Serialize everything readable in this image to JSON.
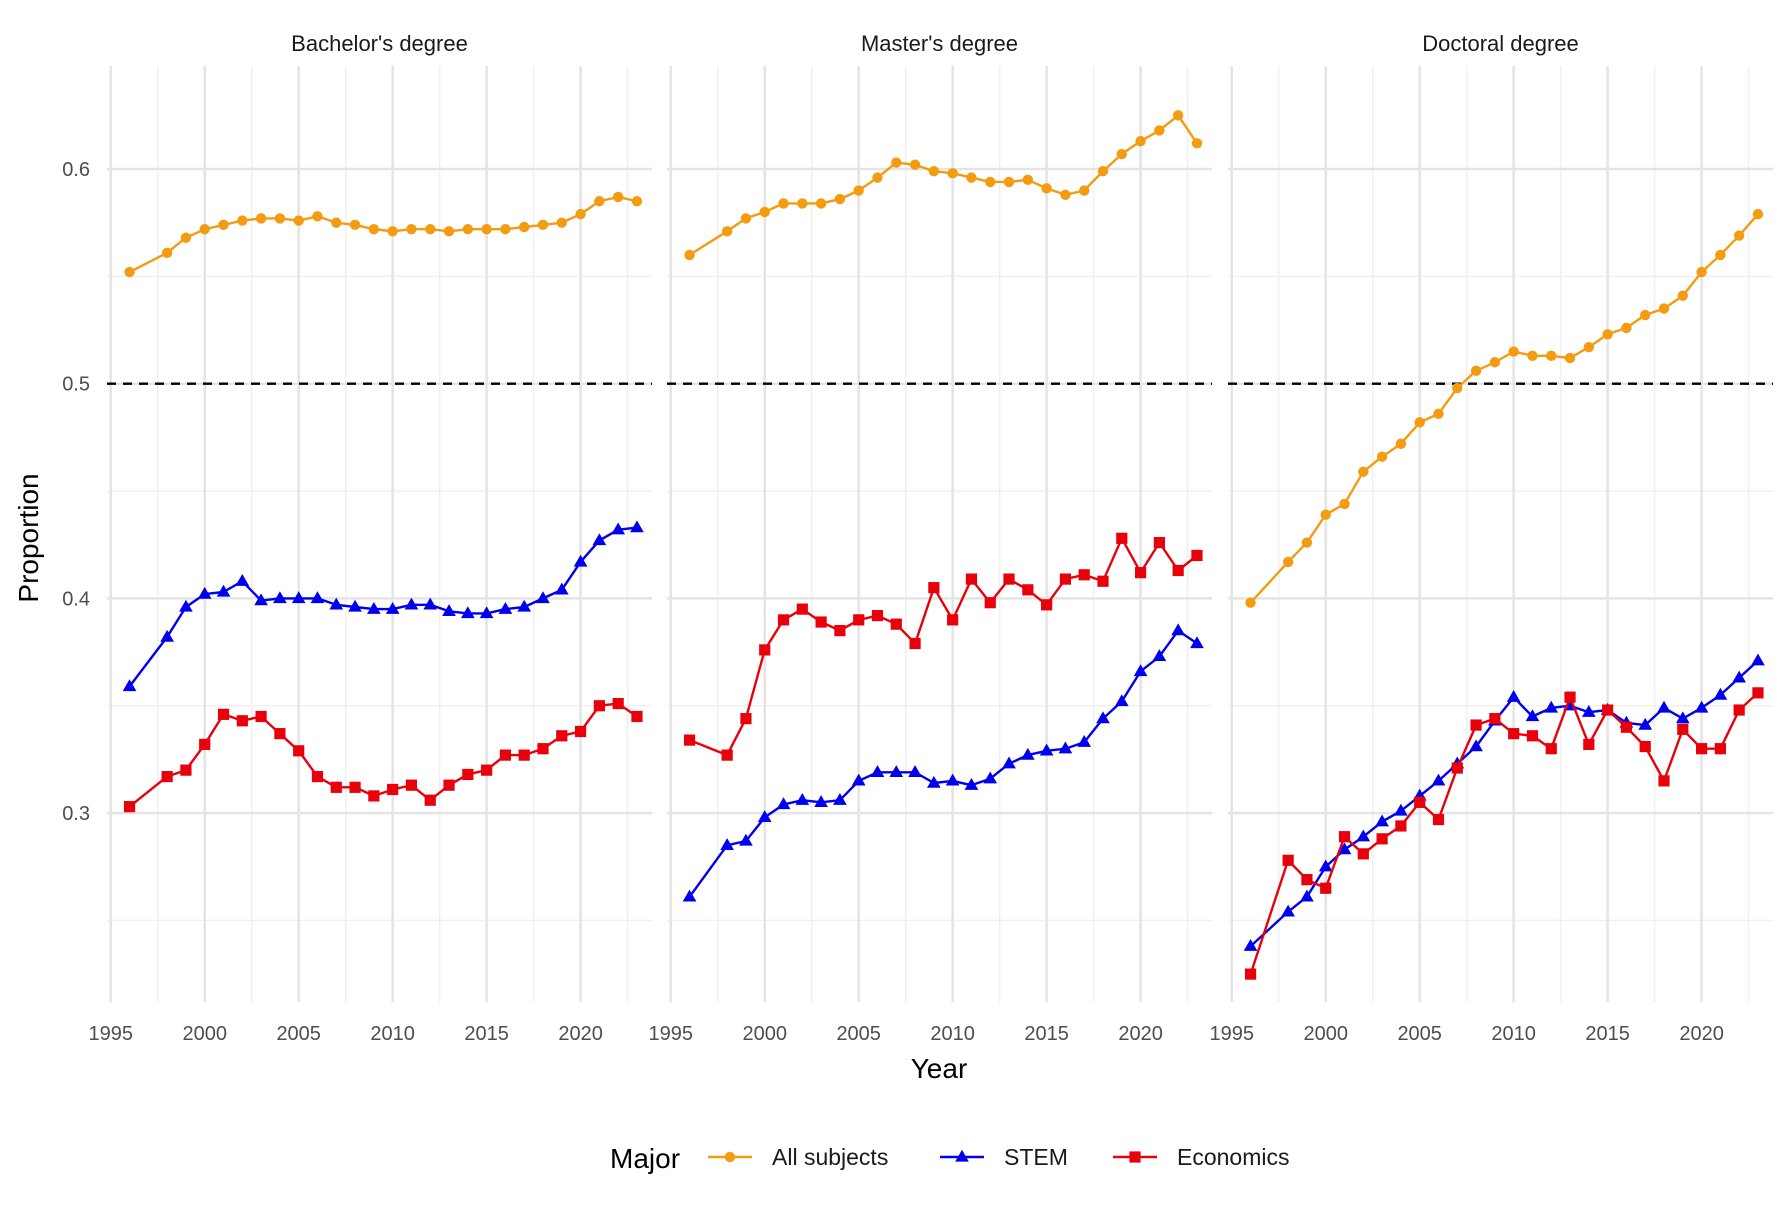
{
  "chart_data": {
    "type": "line",
    "xlabel": "Year",
    "ylabel": "Proportion",
    "xlim": [
      1994.8,
      2023.8
    ],
    "ylim": [
      0.212,
      0.648
    ],
    "x_ticks": [
      1995,
      2000,
      2005,
      2010,
      2015,
      2020
    ],
    "x_tick_labels": [
      "1995",
      "2000",
      "2005",
      "2010",
      "2015",
      "2020"
    ],
    "y_ticks": [
      0.3,
      0.4,
      0.5,
      0.6
    ],
    "y_tick_labels": [
      "0.3",
      "0.4",
      "0.5",
      "0.6"
    ],
    "reference_line": {
      "y": 0.5,
      "style": "dashed",
      "color": "#000000"
    },
    "grid": true,
    "legend": {
      "title": "Major",
      "position": "bottom",
      "entries": [
        "All subjects",
        "STEM",
        "Economics"
      ]
    },
    "colors": {
      "All subjects": "#F39C12",
      "STEM": "#0000EE",
      "Economics": "#E8000B"
    },
    "markers": {
      "All subjects": "circle",
      "STEM": "triangle",
      "Economics": "square"
    },
    "x": [
      1996,
      1998,
      1999,
      2000,
      2001,
      2002,
      2003,
      2004,
      2005,
      2006,
      2007,
      2008,
      2009,
      2010,
      2011,
      2012,
      2013,
      2014,
      2015,
      2016,
      2017,
      2018,
      2019,
      2020,
      2021,
      2022,
      2023
    ],
    "panels": [
      {
        "title": "Bachelor's degree",
        "series": [
          {
            "name": "All subjects",
            "values": [
              0.552,
              0.561,
              0.568,
              0.572,
              0.574,
              0.576,
              0.577,
              0.577,
              0.576,
              0.578,
              0.575,
              0.574,
              0.572,
              0.571,
              0.572,
              0.572,
              0.571,
              0.572,
              0.572,
              0.572,
              0.573,
              0.574,
              0.575,
              0.579,
              0.585,
              0.587,
              0.585
            ]
          },
          {
            "name": "STEM",
            "values": [
              0.359,
              0.382,
              0.396,
              0.402,
              0.403,
              0.408,
              0.399,
              0.4,
              0.4,
              0.4,
              0.397,
              0.396,
              0.395,
              0.395,
              0.397,
              0.397,
              0.394,
              0.393,
              0.393,
              0.395,
              0.396,
              0.4,
              0.404,
              0.417,
              0.427,
              0.432,
              0.433
            ]
          },
          {
            "name": "Economics",
            "values": [
              0.303,
              0.317,
              0.32,
              0.332,
              0.346,
              0.343,
              0.345,
              0.337,
              0.329,
              0.317,
              0.312,
              0.312,
              0.308,
              0.311,
              0.313,
              0.306,
              0.313,
              0.318,
              0.32,
              0.327,
              0.327,
              0.33,
              0.336,
              0.338,
              0.35,
              0.351,
              0.345
            ]
          }
        ]
      },
      {
        "title": "Master's degree",
        "series": [
          {
            "name": "All subjects",
            "values": [
              0.56,
              0.571,
              0.577,
              0.58,
              0.584,
              0.584,
              0.584,
              0.586,
              0.59,
              0.596,
              0.603,
              0.602,
              0.599,
              0.598,
              0.596,
              0.594,
              0.594,
              0.595,
              0.591,
              0.588,
              0.59,
              0.599,
              0.607,
              0.613,
              0.618,
              0.625,
              0.612
            ]
          },
          {
            "name": "STEM",
            "values": [
              0.261,
              0.285,
              0.287,
              0.298,
              0.304,
              0.306,
              0.305,
              0.306,
              0.315,
              0.319,
              0.319,
              0.319,
              0.314,
              0.315,
              0.313,
              0.316,
              0.323,
              0.327,
              0.329,
              0.33,
              0.333,
              0.344,
              0.352,
              0.366,
              0.373,
              0.385,
              0.379
            ]
          },
          {
            "name": "Economics",
            "values": [
              0.334,
              0.327,
              0.344,
              0.376,
              0.39,
              0.395,
              0.389,
              0.385,
              0.39,
              0.392,
              0.388,
              0.379,
              0.405,
              0.39,
              0.409,
              0.398,
              0.409,
              0.404,
              0.397,
              0.409,
              0.411,
              0.408,
              0.428,
              0.412,
              0.426,
              0.413,
              0.42
            ]
          }
        ]
      },
      {
        "title": "Doctoral degree",
        "series": [
          {
            "name": "All subjects",
            "values": [
              0.398,
              0.417,
              0.426,
              0.439,
              0.444,
              0.459,
              0.466,
              0.472,
              0.482,
              0.486,
              0.498,
              0.506,
              0.51,
              0.515,
              0.513,
              0.513,
              0.512,
              0.517,
              0.523,
              0.526,
              0.532,
              0.535,
              0.541,
              0.552,
              0.56,
              0.569,
              0.579
            ]
          },
          {
            "name": "STEM",
            "values": [
              0.238,
              0.254,
              0.261,
              0.275,
              0.283,
              0.289,
              0.296,
              0.301,
              0.308,
              0.315,
              0.323,
              0.331,
              0.343,
              0.354,
              0.345,
              0.349,
              0.35,
              0.347,
              0.348,
              0.342,
              0.341,
              0.349,
              0.344,
              0.349,
              0.355,
              0.363,
              0.371
            ]
          },
          {
            "name": "Economics",
            "values": [
              0.225,
              0.278,
              0.269,
              0.265,
              0.289,
              0.281,
              0.288,
              0.294,
              0.305,
              0.297,
              0.321,
              0.341,
              0.344,
              0.337,
              0.336,
              0.33,
              0.354,
              0.332,
              0.348,
              0.34,
              0.331,
              0.315,
              0.339,
              0.33,
              0.33,
              0.348,
              0.356
            ]
          }
        ]
      }
    ]
  }
}
